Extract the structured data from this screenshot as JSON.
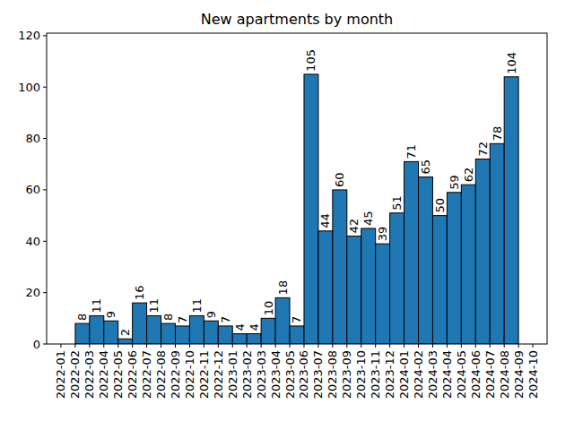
{
  "chart_data": {
    "type": "histogram",
    "title": "New apartments by month",
    "bins": [
      "2022-02",
      "2022-03",
      "2022-04",
      "2022-05",
      "2022-06",
      "2022-07",
      "2022-08",
      "2022-09",
      "2022-10",
      "2022-11",
      "2022-12",
      "2023-01",
      "2023-02",
      "2023-03",
      "2023-04",
      "2023-05",
      "2023-06",
      "2023-07",
      "2023-08",
      "2023-09",
      "2023-10",
      "2023-11",
      "2023-12",
      "2024-01",
      "2024-02",
      "2024-03",
      "2024-04",
      "2024-05",
      "2024-06",
      "2024-07",
      "2024-08",
      "2024-09"
    ],
    "values": [
      8,
      11,
      9,
      2,
      16,
      11,
      8,
      7,
      11,
      9,
      7,
      4,
      4,
      10,
      18,
      7,
      105,
      44,
      60,
      42,
      45,
      39,
      51,
      71,
      65,
      50,
      59,
      62,
      72,
      78,
      104
    ],
    "color": "#1f77b4",
    "xlim": [
      "2021-12",
      "2024-11"
    ],
    "xticks": [
      "2022-01",
      "2022-02",
      "2022-03",
      "2022-04",
      "2022-05",
      "2022-06",
      "2022-07",
      "2022-08",
      "2022-09",
      "2022-10",
      "2022-11",
      "2022-12",
      "2023-01",
      "2023-02",
      "2023-03",
      "2023-04",
      "2023-05",
      "2023-06",
      "2023-07",
      "2023-08",
      "2023-09",
      "2023-10",
      "2023-11",
      "2023-12",
      "2024-01",
      "2024-02",
      "2024-03",
      "2024-04",
      "2024-05",
      "2024-06",
      "2024-07",
      "2024-08",
      "2024-09",
      "2024-10"
    ],
    "ylim": [
      0,
      121
    ],
    "yticks": [
      0,
      20,
      40,
      60,
      80,
      100,
      120
    ],
    "grid": false,
    "data_labels": true
  }
}
